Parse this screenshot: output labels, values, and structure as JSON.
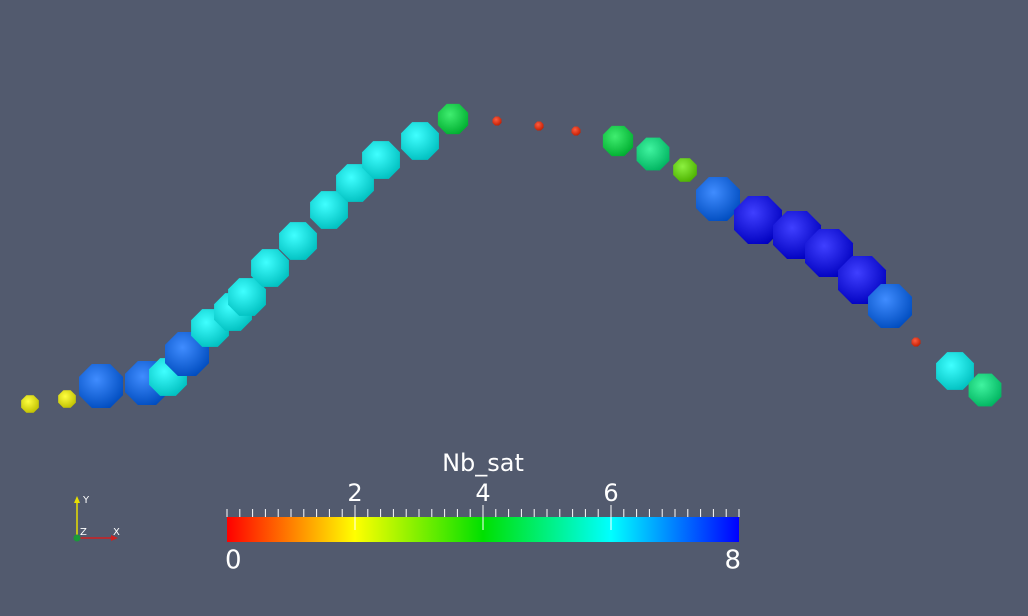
{
  "colorbar": {
    "title": "Nb_sat",
    "range": [
      0,
      8
    ],
    "ticks": [
      2,
      4,
      6
    ]
  },
  "glyphs": {
    "values": [
      2,
      2,
      7.2,
      7.2,
      6,
      7.2,
      6,
      6,
      6,
      6,
      6,
      6,
      6,
      6,
      6,
      4.5,
      0.3,
      0.3,
      0.3,
      4.5,
      5,
      3.2,
      7.2,
      8,
      8,
      8,
      8,
      7.2,
      0.3,
      6,
      5
    ]
  },
  "axes": {
    "x": "X",
    "y": "Y",
    "z": "Z"
  }
}
